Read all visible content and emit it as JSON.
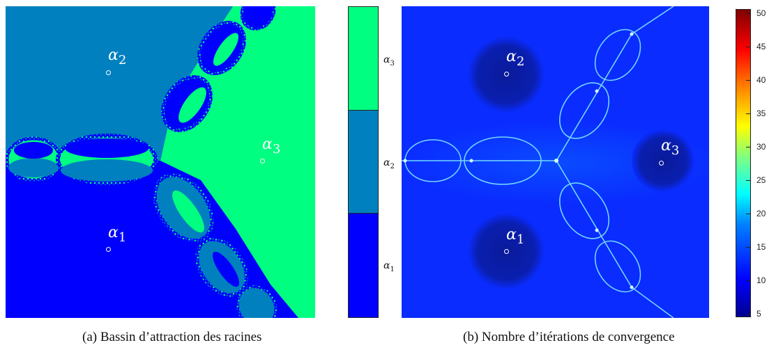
{
  "figure_a": {
    "caption": "(a) Bassin d’attraction des racines",
    "roots": [
      {
        "symbol": "α",
        "index": "1"
      },
      {
        "symbol": "α",
        "index": "2"
      },
      {
        "symbol": "α",
        "index": "3"
      }
    ],
    "colorbar": {
      "segments": [
        {
          "label_symbol": "α",
          "label_index": "3",
          "color": "#00ff80"
        },
        {
          "label_symbol": "α",
          "label_index": "2",
          "color": "#0080bf"
        },
        {
          "label_symbol": "α",
          "label_index": "1",
          "color": "#0000ff"
        }
      ]
    }
  },
  "figure_b": {
    "caption": "(b) Nombre d’itérations de convergence",
    "roots": [
      {
        "symbol": "α",
        "index": "1"
      },
      {
        "symbol": "α",
        "index": "2"
      },
      {
        "symbol": "α",
        "index": "3"
      }
    ],
    "colorbar": {
      "colormap": "jet",
      "ticks": [
        "50",
        "45",
        "40",
        "35",
        "30",
        "25",
        "20",
        "15",
        "10",
        "5"
      ]
    }
  },
  "colors": {
    "basin_alpha1": "#0000ff",
    "basin_alpha2": "#0080bf",
    "basin_alpha3": "#00ff80",
    "iter_background": "#0a2cff",
    "iter_root_halo": "#0a1fb0",
    "iter_fractal": "#7fe9ff"
  }
}
